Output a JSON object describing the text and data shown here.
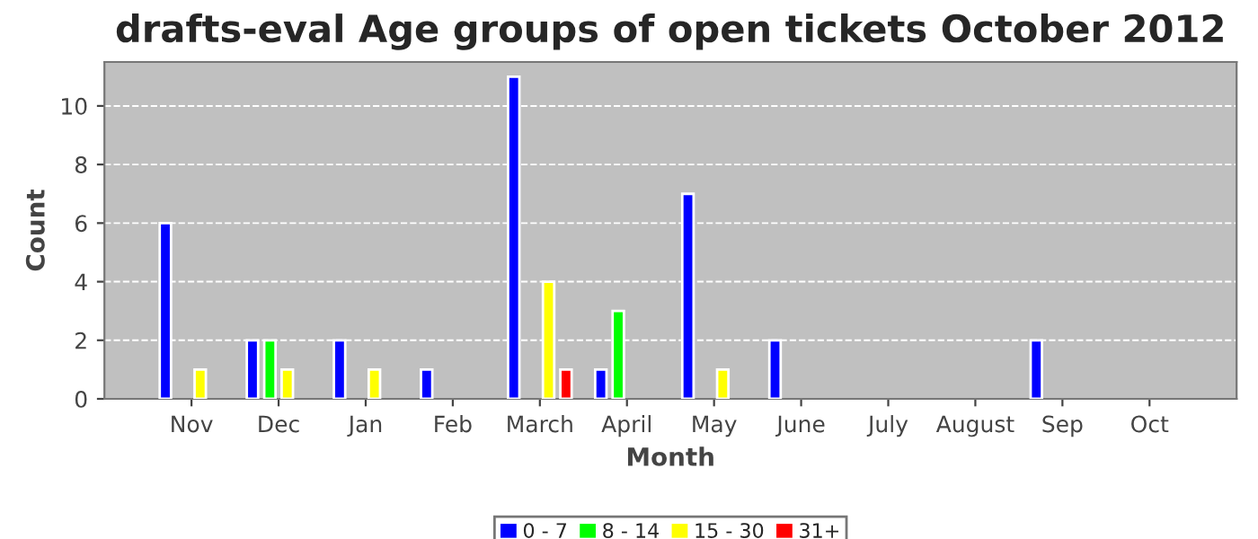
{
  "chart_data": {
    "type": "bar",
    "title": "drafts-eval Age groups of open tickets October 2012",
    "xlabel": "Month",
    "ylabel": "Count",
    "categories": [
      "Nov",
      "Dec",
      "Jan",
      "Feb",
      "March",
      "April",
      "May",
      "June",
      "July",
      "August",
      "Sep",
      "Oct"
    ],
    "series": [
      {
        "name": "0 - 7",
        "color": "#0000ff",
        "values": [
          6,
          2,
          2,
          1,
          11,
          1,
          7,
          2,
          null,
          null,
          2,
          null
        ]
      },
      {
        "name": "8 - 14",
        "color": "#00ff00",
        "values": [
          null,
          2,
          null,
          null,
          null,
          3,
          null,
          null,
          null,
          null,
          null,
          null
        ]
      },
      {
        "name": "15 - 30",
        "color": "#ffff00",
        "values": [
          1,
          1,
          1,
          null,
          4,
          null,
          1,
          null,
          null,
          null,
          null,
          null
        ]
      },
      {
        "name": "31+",
        "color": "#ff0000",
        "values": [
          null,
          null,
          null,
          null,
          1,
          null,
          null,
          null,
          null,
          null,
          null,
          null
        ]
      }
    ],
    "ylim": [
      0,
      11.5
    ],
    "yticks": [
      0,
      2,
      4,
      6,
      8,
      10
    ],
    "grid": "y",
    "legend": "bottom"
  }
}
